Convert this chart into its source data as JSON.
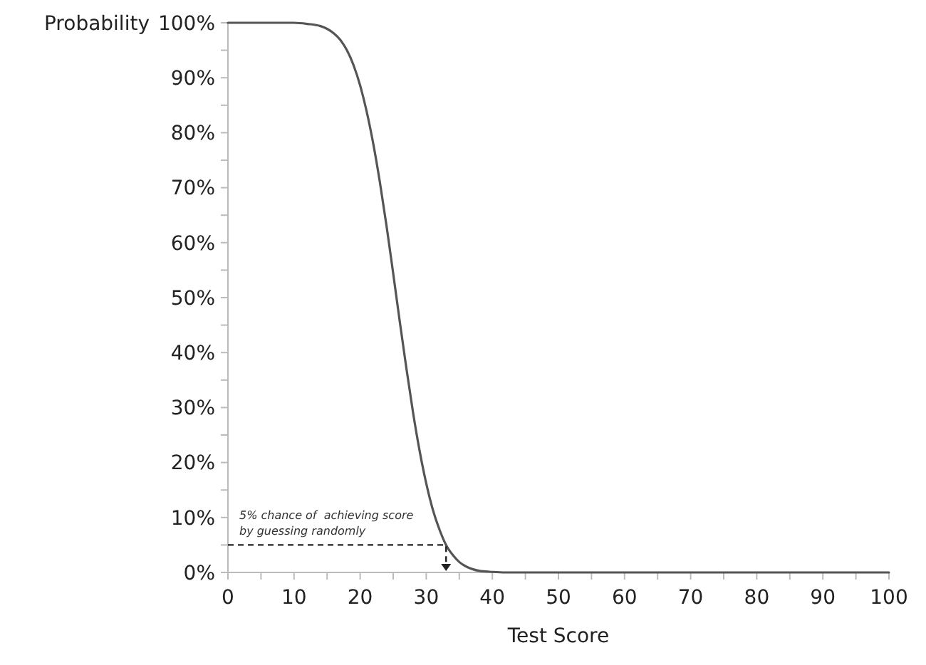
{
  "chart_data": {
    "type": "line",
    "xlabel": "Test Score",
    "ylabel": "Probability",
    "x": [
      0,
      5,
      10,
      12,
      14,
      15,
      16,
      17,
      18,
      19,
      20,
      21,
      22,
      23,
      24,
      25,
      26,
      27,
      28,
      29,
      30,
      31,
      32,
      33,
      34,
      35,
      36,
      37,
      38,
      40,
      42,
      45,
      50,
      60,
      70,
      80,
      90,
      100
    ],
    "series": [
      {
        "color": "#555555",
        "values": [
          100,
          100,
          100,
          99.8,
          99.4,
          98.9,
          98.1,
          96.9,
          95,
          92.3,
          88.6,
          83.8,
          77.9,
          70.9,
          63,
          54.4,
          45.6,
          37.1,
          29.1,
          22.1,
          16.2,
          11.4,
          7.8,
          5,
          3.2,
          1.9,
          1.1,
          0.6,
          0.3,
          0.1,
          0,
          0,
          0,
          0,
          0,
          0,
          0,
          0
        ]
      }
    ],
    "xlim": [
      0,
      100
    ],
    "ylim": [
      0,
      100
    ],
    "xticks": [
      0,
      {
        "value": 5,
        "label": null
      },
      10,
      {
        "value": 15,
        "label": null
      },
      20,
      {
        "value": 25,
        "label": null
      },
      30,
      {
        "value": 35,
        "label": null
      },
      40,
      {
        "value": 45,
        "label": null
      },
      50,
      {
        "value": 55,
        "label": null
      },
      60,
      {
        "value": 65,
        "label": null
      },
      70,
      {
        "value": 75,
        "label": null
      },
      80,
      {
        "value": 85,
        "label": null
      },
      90,
      {
        "value": 95,
        "label": null
      },
      100
    ],
    "yticks": [
      {
        "value": 0,
        "label": "0%"
      },
      {
        "value": 5,
        "label": null
      },
      {
        "value": 10,
        "label": "10%"
      },
      {
        "value": 15,
        "label": null
      },
      {
        "value": 20,
        "label": "20%"
      },
      {
        "value": 25,
        "label": null
      },
      {
        "value": 30,
        "label": "30%"
      },
      {
        "value": 35,
        "label": null
      },
      {
        "value": 40,
        "label": "40%"
      },
      {
        "value": 45,
        "label": null
      },
      {
        "value": 50,
        "label": "50%"
      },
      {
        "value": 55,
        "label": null
      },
      {
        "value": 60,
        "label": "60%"
      },
      {
        "value": 65,
        "label": null
      },
      {
        "value": 70,
        "label": "70%"
      },
      {
        "value": 75,
        "label": null
      },
      {
        "value": 80,
        "label": "80%"
      },
      {
        "value": 85,
        "label": null
      },
      {
        "value": 90,
        "label": "90%"
      },
      {
        "value": 95,
        "label": null
      },
      {
        "value": 100,
        "label": "100%"
      }
    ],
    "annotations": [
      {
        "text": "5% chance of  achieving score by guessing randomly",
        "x": 33,
        "y": 5
      }
    ],
    "grid": false,
    "marker": "none",
    "line_style": "solid"
  }
}
